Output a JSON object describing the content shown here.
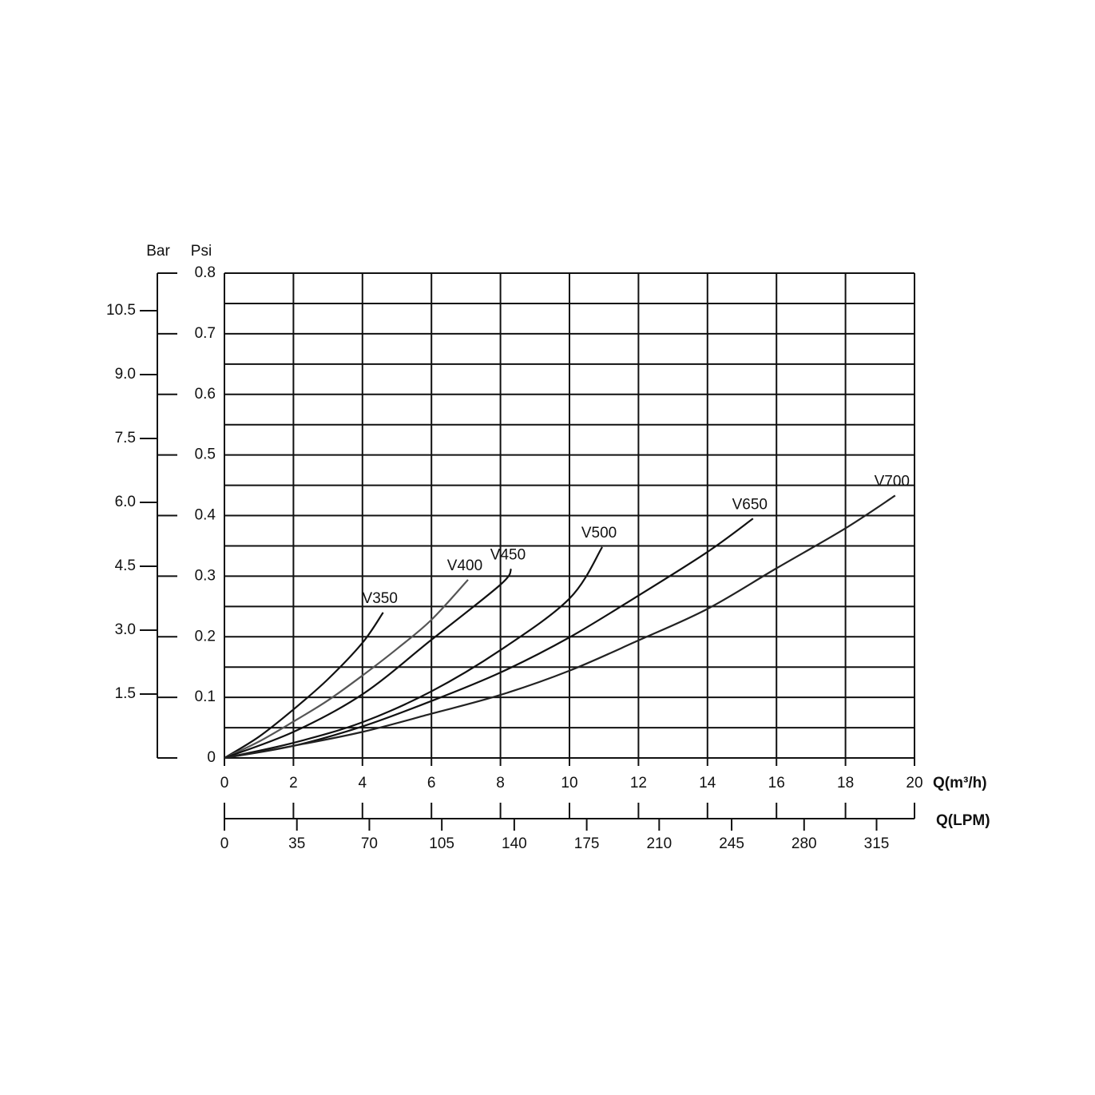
{
  "chart_data": {
    "type": "line",
    "y_axis_label": "Psi",
    "y2_axis_label": "Bar",
    "x_axis_label": "Q(m³/h)",
    "x2_axis_label": "Q(LPM)",
    "xlim": [
      0,
      20
    ],
    "xticks": [
      0,
      2,
      4,
      6,
      8,
      10,
      12,
      14,
      16,
      18,
      20
    ],
    "x2lim": [
      0,
      333.33
    ],
    "x2ticks": [
      0,
      35,
      70,
      105,
      140,
      175,
      210,
      245,
      280,
      315
    ],
    "ylim": [
      0,
      0.8
    ],
    "yticks": [
      0,
      0.1,
      0.2,
      0.3,
      0.4,
      0.5,
      0.6,
      0.7,
      0.8
    ],
    "yminorticks": [
      0.05,
      0.15,
      0.25,
      0.35,
      0.45,
      0.55,
      0.65,
      0.75
    ],
    "y2lim": [
      0,
      11.38
    ],
    "y2ticks": [
      1.5,
      {
        "value": 3,
        "label": "3.0"
      },
      4.5,
      {
        "value": 6,
        "label": "6.0"
      },
      7.5,
      {
        "value": 9,
        "label": "9.0"
      },
      10.5
    ],
    "grid": true,
    "series": [
      {
        "name": "V350",
        "color": "#111111",
        "x": [
          0,
          1,
          2,
          3,
          4,
          4.6
        ],
        "values": [
          0,
          0.035,
          0.08,
          0.13,
          0.19,
          0.24
        ]
      },
      {
        "name": "V400",
        "color": "#555555",
        "x": [
          0,
          1,
          2,
          3,
          4,
          5,
          6,
          7.06
        ],
        "values": [
          0,
          0.027,
          0.06,
          0.095,
          0.136,
          0.18,
          0.228,
          0.294
        ]
      },
      {
        "name": "V450",
        "color": "#111111",
        "x": [
          0,
          2,
          4,
          6,
          8,
          8.31
        ],
        "values": [
          0,
          0.043,
          0.105,
          0.195,
          0.286,
          0.312
        ]
      },
      {
        "name": "V500",
        "color": "#111111",
        "x": [
          0,
          2,
          4,
          6,
          8,
          10,
          10.95
        ],
        "values": [
          0,
          0.025,
          0.059,
          0.11,
          0.178,
          0.263,
          0.348
        ]
      },
      {
        "name": "V650",
        "color": "#111111",
        "x": [
          0,
          2,
          4,
          6,
          8,
          10,
          12,
          14,
          15.32
        ],
        "values": [
          0,
          0.02,
          0.052,
          0.094,
          0.141,
          0.199,
          0.268,
          0.34,
          0.395
        ]
      },
      {
        "name": "V700",
        "color": "#222222",
        "x": [
          0,
          2,
          4,
          6,
          8,
          10,
          12,
          14,
          16,
          18,
          19.44
        ],
        "values": [
          0,
          0.02,
          0.043,
          0.073,
          0.104,
          0.144,
          0.194,
          0.246,
          0.313,
          0.379,
          0.433
        ]
      }
    ]
  }
}
